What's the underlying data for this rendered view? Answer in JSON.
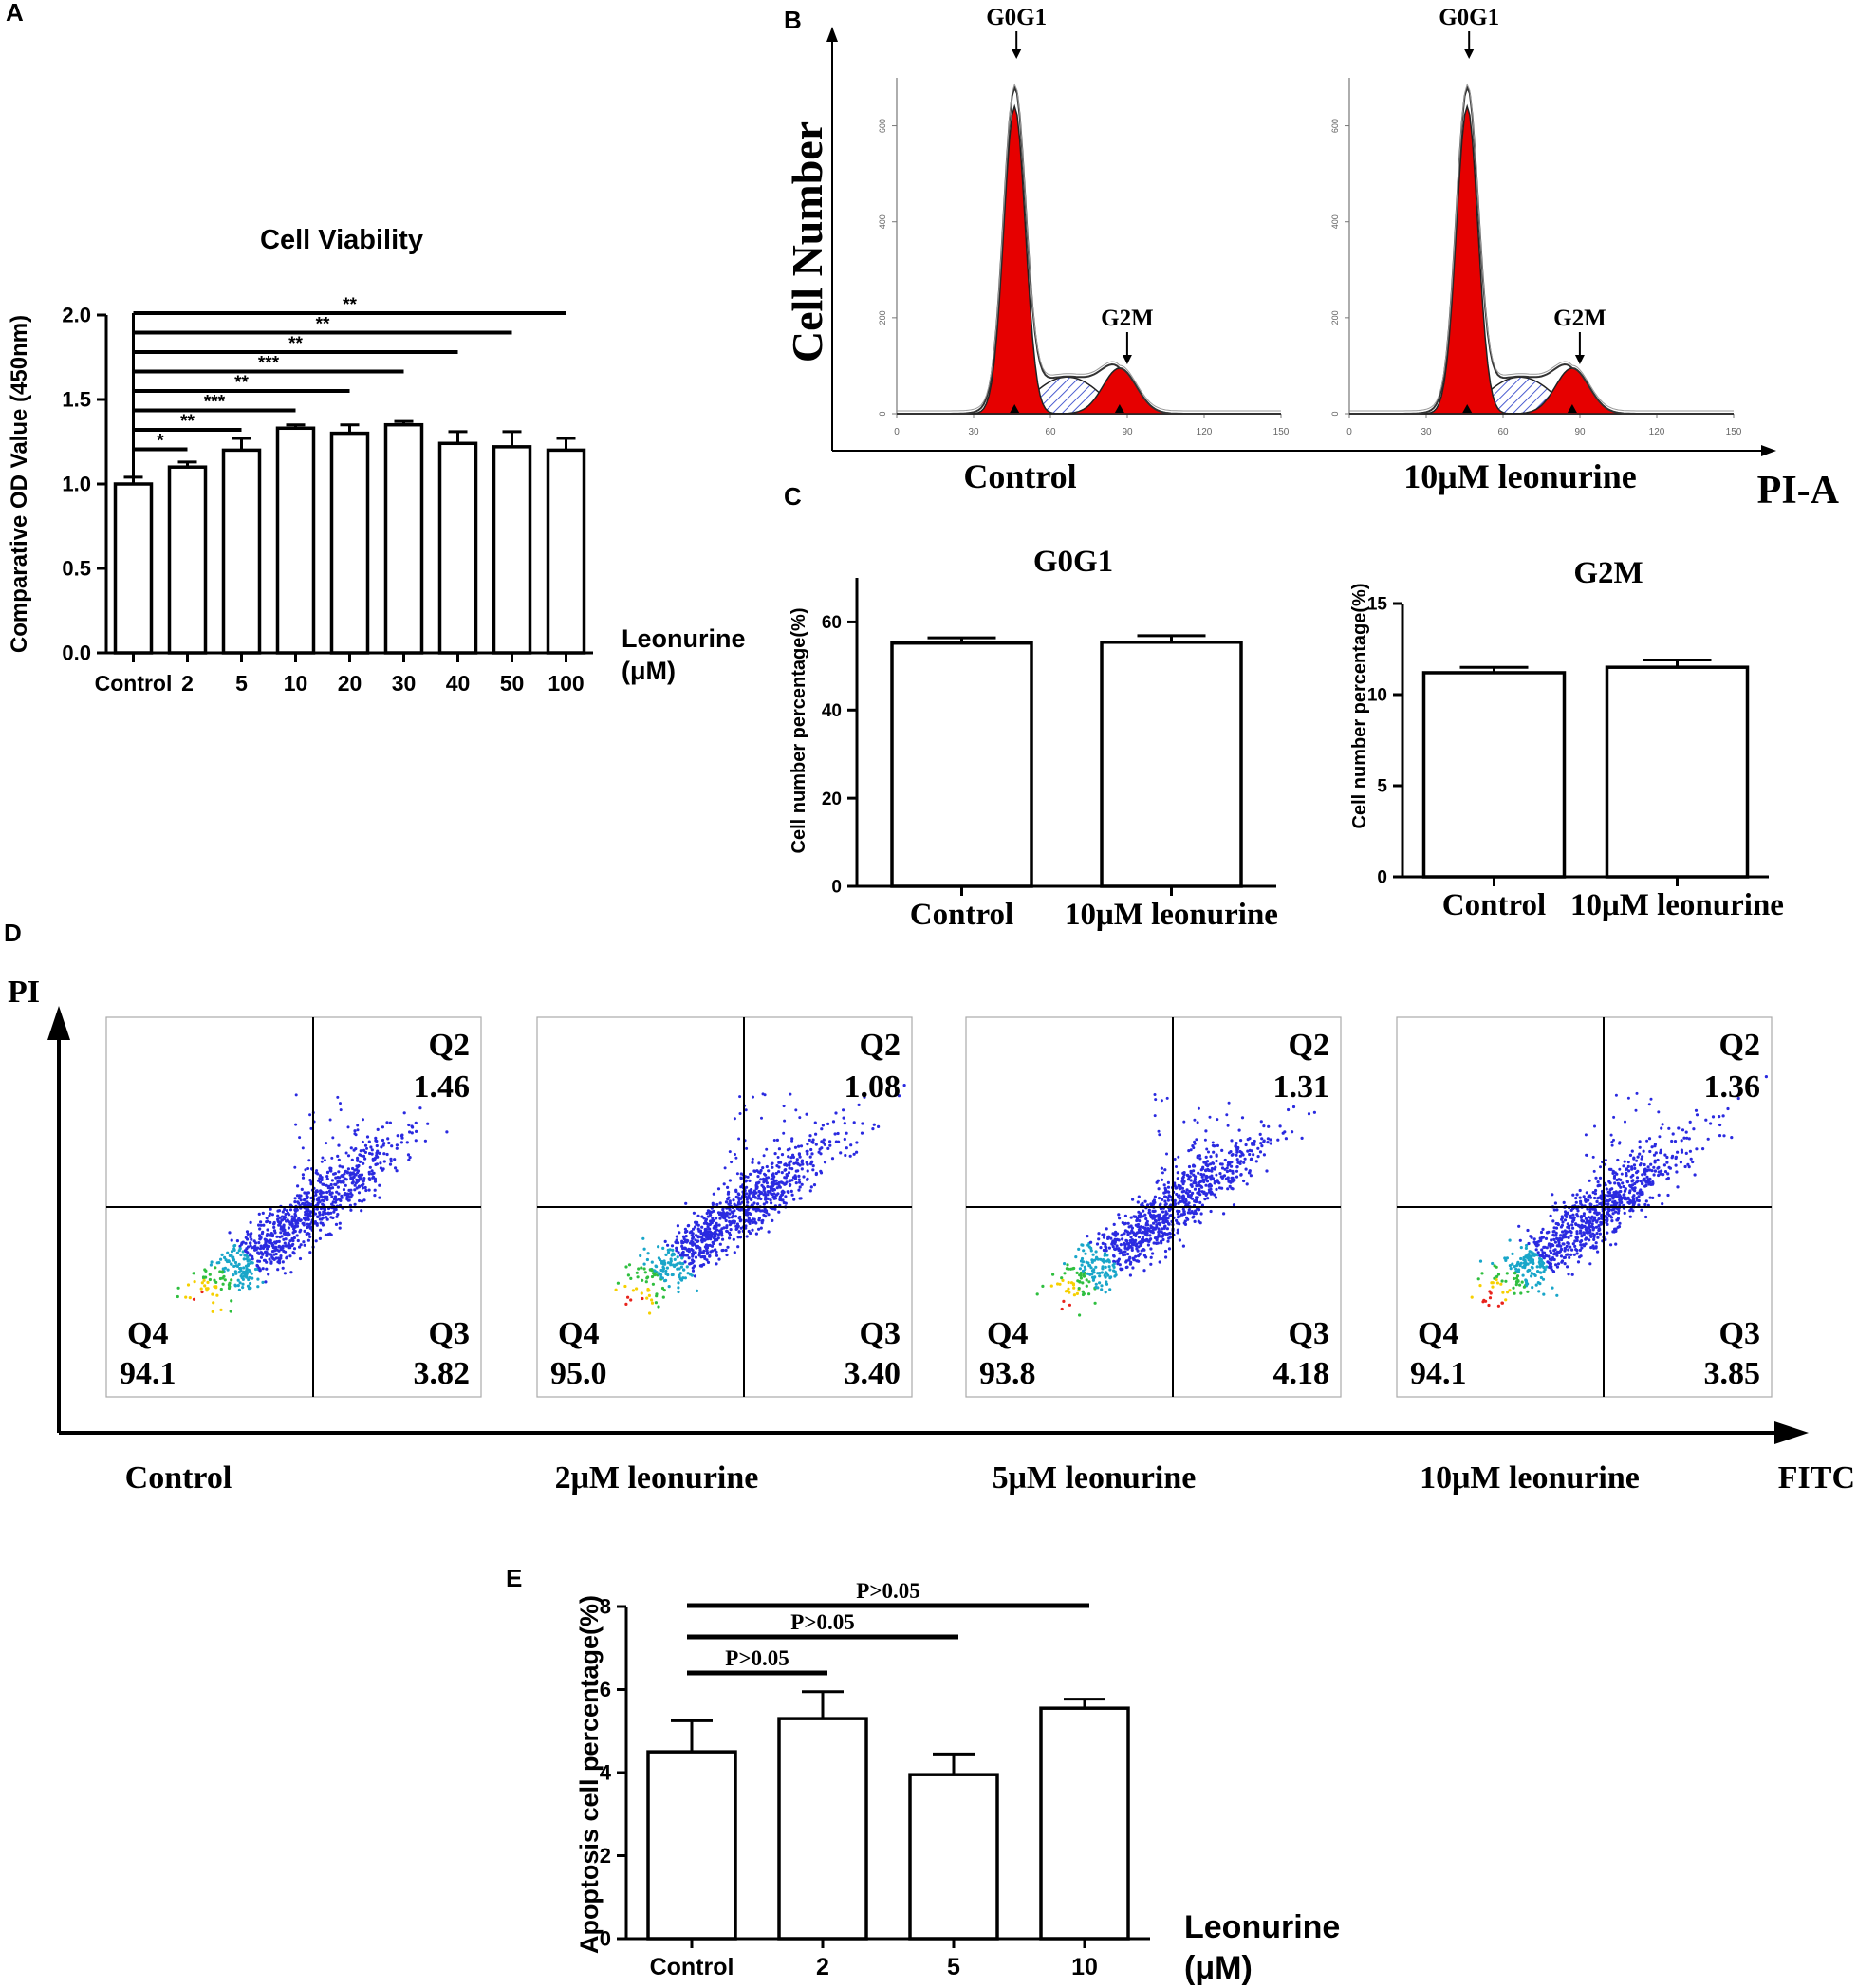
{
  "panel_labels": {
    "a": "A",
    "b": "B",
    "c": "C",
    "d": "D",
    "e": "E"
  },
  "chart_data": [
    {
      "id": "A",
      "type": "bar",
      "title": "Cell Viability",
      "ylabel": "Comparative OD Value (450nm)",
      "xlabel_line1": "Leonurine",
      "xlabel_line2": "(μM)",
      "categories": [
        "Control",
        "2",
        "5",
        "10",
        "20",
        "30",
        "40",
        "50",
        "100"
      ],
      "values": [
        1.0,
        1.1,
        1.2,
        1.33,
        1.3,
        1.35,
        1.24,
        1.22,
        1.2
      ],
      "errors": [
        0.04,
        0.03,
        0.07,
        0.02,
        0.05,
        0.02,
        0.07,
        0.09,
        0.07
      ],
      "ylim": [
        0,
        2.0
      ],
      "yticks": [
        "0.0",
        "0.5",
        "1.0",
        "1.5",
        "2.0"
      ],
      "significance": [
        {
          "to": "2",
          "label": "*"
        },
        {
          "to": "5",
          "label": "**"
        },
        {
          "to": "10",
          "label": "***"
        },
        {
          "to": "20",
          "label": "**"
        },
        {
          "to": "30",
          "label": "***"
        },
        {
          "to": "40",
          "label": "**"
        },
        {
          "to": "50",
          "label": "**"
        },
        {
          "to": "100",
          "label": "**"
        }
      ]
    },
    {
      "id": "B",
      "type": "histogram",
      "ylabel": "Cell Number",
      "xlabel": "PI-A",
      "yticks": [
        "0",
        "200",
        "400",
        "600"
      ],
      "xticks": [
        "0",
        "30",
        "60",
        "90",
        "120",
        "150"
      ],
      "peak_labels": {
        "g0g1": "G0G1",
        "g2m": "G2M"
      },
      "panels": [
        {
          "label": "Control"
        },
        {
          "label": "10μM leonurine"
        }
      ]
    },
    {
      "id": "C1",
      "type": "bar",
      "title": "G0G1",
      "ylabel": "Cell number percentage(%)",
      "categories": [
        "Control",
        "10μM leonurine"
      ],
      "values": [
        55.2,
        55.4
      ],
      "errors": [
        1.2,
        1.5
      ],
      "ylim": [
        0,
        70
      ],
      "yticks": [
        "0",
        "20",
        "40",
        "60"
      ]
    },
    {
      "id": "C2",
      "type": "bar",
      "title": "G2M",
      "ylabel": "Cell number percentage(%)",
      "categories": [
        "Control",
        "10μM leonurine"
      ],
      "values": [
        11.2,
        11.5
      ],
      "errors": [
        0.3,
        0.4
      ],
      "ylim": [
        0,
        15
      ],
      "yticks": [
        "0",
        "5",
        "10",
        "15"
      ]
    },
    {
      "id": "D",
      "type": "scatter",
      "ylabel": "PI",
      "xlabel": "FITC",
      "panels": [
        {
          "label": "Control",
          "q2": "1.46",
          "q3": "3.82",
          "q4": "94.1"
        },
        {
          "label": "2μM leonurine",
          "q2": "1.08",
          "q3": "3.40",
          "q4": "95.0"
        },
        {
          "label": "5μM leonurine",
          "q2": "1.31",
          "q3": "4.18",
          "q4": "93.8"
        },
        {
          "label": "10μM leonurine",
          "q2": "1.36",
          "q3": "3.85",
          "q4": "94.1"
        }
      ],
      "quadrant_names": {
        "q2": "Q2",
        "q3": "Q3",
        "q4": "Q4"
      }
    },
    {
      "id": "E",
      "type": "bar",
      "ylabel": "Apoptosis cell percentage(%)",
      "xlabel_line1": "Leonurine",
      "xlabel_line2": "(μM)",
      "categories": [
        "Control",
        "2",
        "5",
        "10"
      ],
      "values": [
        4.5,
        5.3,
        3.95,
        5.55
      ],
      "errors": [
        0.75,
        0.65,
        0.5,
        0.22
      ],
      "ylim": [
        0,
        8
      ],
      "yticks": [
        "0",
        "2",
        "4",
        "6",
        "8"
      ],
      "significance": [
        {
          "to": "2",
          "label": "P>0.05"
        },
        {
          "to": "5",
          "label": "P>0.05"
        },
        {
          "to": "10",
          "label": "P>0.05"
        }
      ]
    }
  ]
}
